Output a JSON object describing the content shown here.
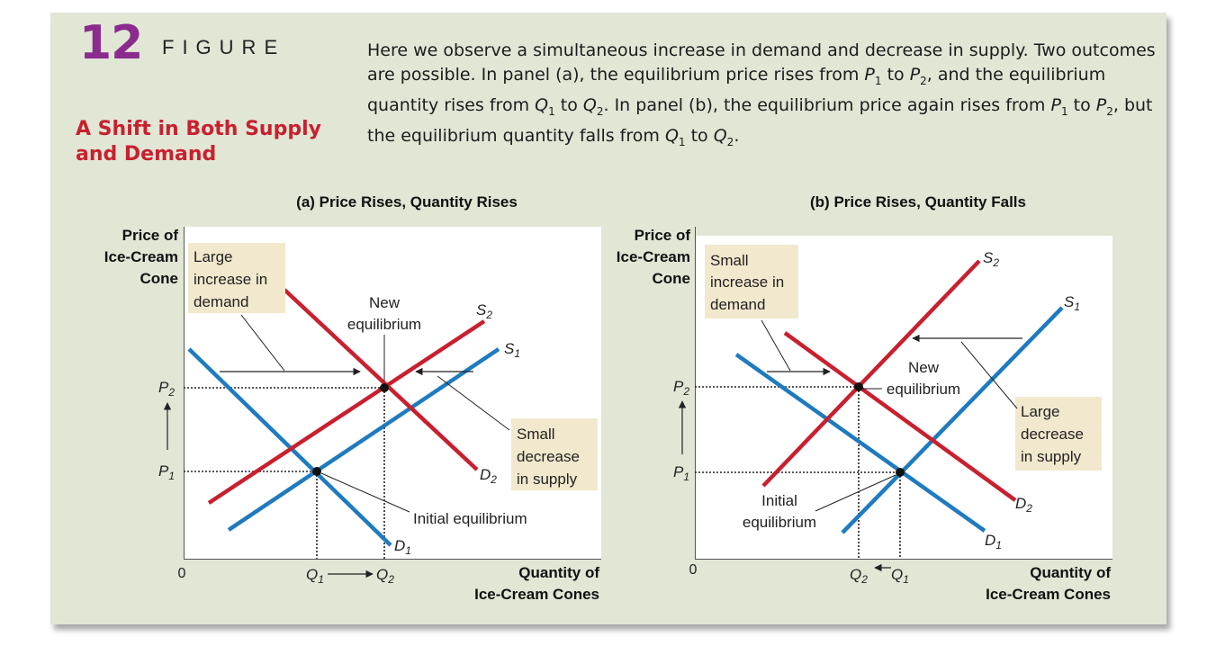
{
  "figure": {
    "number": "12",
    "word": "FIGURE",
    "title_line1": "A Shift in Both Supply",
    "title_line2": "and Demand",
    "caption": [
      {
        "t": "Here we observe a simultaneous increase in demand and decrease in supply. Two outcomes are possible. In panel (a), the equilibrium price rises from "
      },
      {
        "i": "P",
        "s": "1"
      },
      {
        "t": " to "
      },
      {
        "i": "P",
        "s": "2"
      },
      {
        "t": ", and the equilibrium quantity rises from "
      },
      {
        "i": "Q",
        "s": "1"
      },
      {
        "t": " to "
      },
      {
        "i": "Q",
        "s": "2"
      },
      {
        "t": ". In panel (b), the equilibrium price again rises from "
      },
      {
        "i": "P",
        "s": "1"
      },
      {
        "t": " to "
      },
      {
        "i": "P",
        "s": "2"
      },
      {
        "t": ", but the equilibrium quantity falls from "
      },
      {
        "i": "Q",
        "s": "1"
      },
      {
        "t": " to "
      },
      {
        "i": "Q",
        "s": "2"
      },
      {
        "t": "."
      }
    ]
  },
  "colors": {
    "background": "#e1e6d5",
    "demand": "#c8202f",
    "supply": "#1f7bbf",
    "callout": "#f2e8cd",
    "figure_number": "#8b2b8e"
  },
  "panels": [
    {
      "title": "(a) Price Rises, Quantity Rises",
      "y_axis_label": [
        "Price of",
        "Ice-Cream",
        "Cone"
      ],
      "x_axis_label": [
        "Quantity of",
        "Ice-Cream Cones"
      ],
      "origin_label": "0",
      "price_labels": [
        {
          "main": "P",
          "sub": "2"
        },
        {
          "main": "P",
          "sub": "1"
        }
      ],
      "quantity_labels": [
        {
          "main": "Q",
          "sub": "1"
        },
        {
          "main": "Q",
          "sub": "2"
        }
      ],
      "curve_labels": {
        "s1": {
          "main": "S",
          "sub": "1"
        },
        "s2": {
          "main": "S",
          "sub": "2"
        },
        "d1": {
          "main": "D",
          "sub": "1"
        },
        "d2": {
          "main": "D",
          "sub": "2"
        }
      },
      "callouts": [
        [
          "Large",
          "increase in",
          "demand"
        ],
        [
          "Small",
          "decrease",
          "in supply"
        ]
      ],
      "annotations": {
        "new_equilibrium": [
          "New",
          "equilibrium"
        ],
        "initial_equilibrium": [
          "Initial equilibrium"
        ]
      }
    },
    {
      "title": "(b) Price Rises, Quantity Falls",
      "y_axis_label": [
        "Price of",
        "Ice-Cream",
        "Cone"
      ],
      "x_axis_label": [
        "Quantity of",
        "Ice-Cream Cones"
      ],
      "origin_label": "0",
      "price_labels": [
        {
          "main": "P",
          "sub": "2"
        },
        {
          "main": "P",
          "sub": "1"
        }
      ],
      "quantity_labels": [
        {
          "main": "Q",
          "sub": "2"
        },
        {
          "main": "Q",
          "sub": "1"
        }
      ],
      "curve_labels": {
        "s1": {
          "main": "S",
          "sub": "1"
        },
        "s2": {
          "main": "S",
          "sub": "2"
        },
        "d1": {
          "main": "D",
          "sub": "1"
        },
        "d2": {
          "main": "D",
          "sub": "2"
        }
      },
      "callouts": [
        [
          "Small",
          "increase in",
          "demand"
        ],
        [
          "Large",
          "decrease",
          "in supply"
        ]
      ],
      "annotations": {
        "new_equilibrium": [
          "New",
          "equilibrium"
        ],
        "initial_equilibrium": [
          "Initial",
          "equilibrium"
        ]
      }
    }
  ]
}
